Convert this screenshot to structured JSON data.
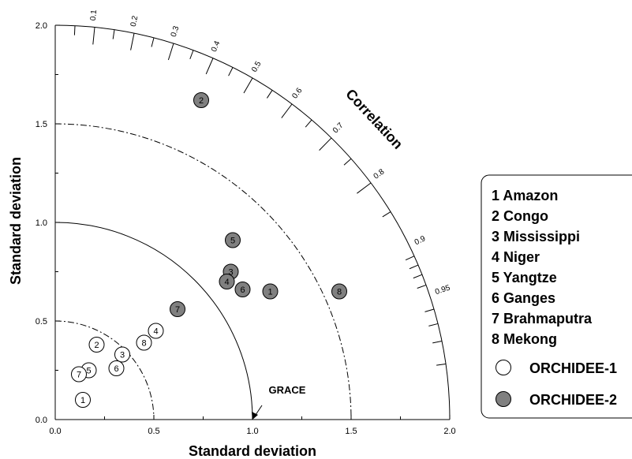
{
  "chart_data": {
    "type": "scatter",
    "subtype": "taylor-diagram",
    "xlabel": "Standard deviation",
    "ylabel": "Standard deviation",
    "arc_label": "Correlation",
    "xlim": [
      0,
      2.0
    ],
    "ylim": [
      0,
      2.0
    ],
    "x_ticks": [
      "0.0",
      "0.5",
      "1.0",
      "1.5",
      "2.0"
    ],
    "y_ticks": [
      "0.0",
      "0.5",
      "1.0",
      "1.5",
      "2.0"
    ],
    "correlation_ticks": [
      "0.1",
      "0.2",
      "0.3",
      "0.4",
      "0.5",
      "0.6",
      "0.7",
      "0.8",
      "0.9",
      "0.95"
    ],
    "reference": {
      "label": "GRACE",
      "std": 1.0
    },
    "std_arcs": [
      {
        "radius": 0.5,
        "style": "dash-dot"
      },
      {
        "radius": 1.0,
        "style": "solid"
      },
      {
        "radius": 1.5,
        "style": "dash-dot"
      },
      {
        "radius": 2.0,
        "style": "solid"
      }
    ],
    "legend_placement": "right",
    "basins": [
      "1 Amazon",
      "2 Congo",
      "3 Mississippi",
      "4 Niger",
      "5 Yangtze",
      "6 Ganges",
      "7 Brahmaputra",
      "8 Mekong"
    ],
    "series": [
      {
        "name": "ORCHIDEE-1",
        "color": "#ffffff",
        "points": [
          {
            "id": "1",
            "x": 0.14,
            "y": 0.1
          },
          {
            "id": "2",
            "x": 0.21,
            "y": 0.38
          },
          {
            "id": "3",
            "x": 0.34,
            "y": 0.33
          },
          {
            "id": "4",
            "x": 0.51,
            "y": 0.45
          },
          {
            "id": "5",
            "x": 0.17,
            "y": 0.25
          },
          {
            "id": "6",
            "x": 0.31,
            "y": 0.26
          },
          {
            "id": "7",
            "x": 0.12,
            "y": 0.23
          },
          {
            "id": "8",
            "x": 0.45,
            "y": 0.39
          }
        ]
      },
      {
        "name": "ORCHIDEE-2",
        "color": "#808080",
        "points": [
          {
            "id": "1",
            "x": 1.09,
            "y": 0.65
          },
          {
            "id": "2",
            "x": 0.74,
            "y": 1.62
          },
          {
            "id": "3",
            "x": 0.89,
            "y": 0.75
          },
          {
            "id": "4",
            "x": 0.87,
            "y": 0.7
          },
          {
            "id": "5",
            "x": 0.9,
            "y": 0.91
          },
          {
            "id": "6",
            "x": 0.95,
            "y": 0.66
          },
          {
            "id": "7",
            "x": 0.62,
            "y": 0.56
          },
          {
            "id": "8",
            "x": 1.44,
            "y": 0.65
          }
        ]
      }
    ]
  }
}
